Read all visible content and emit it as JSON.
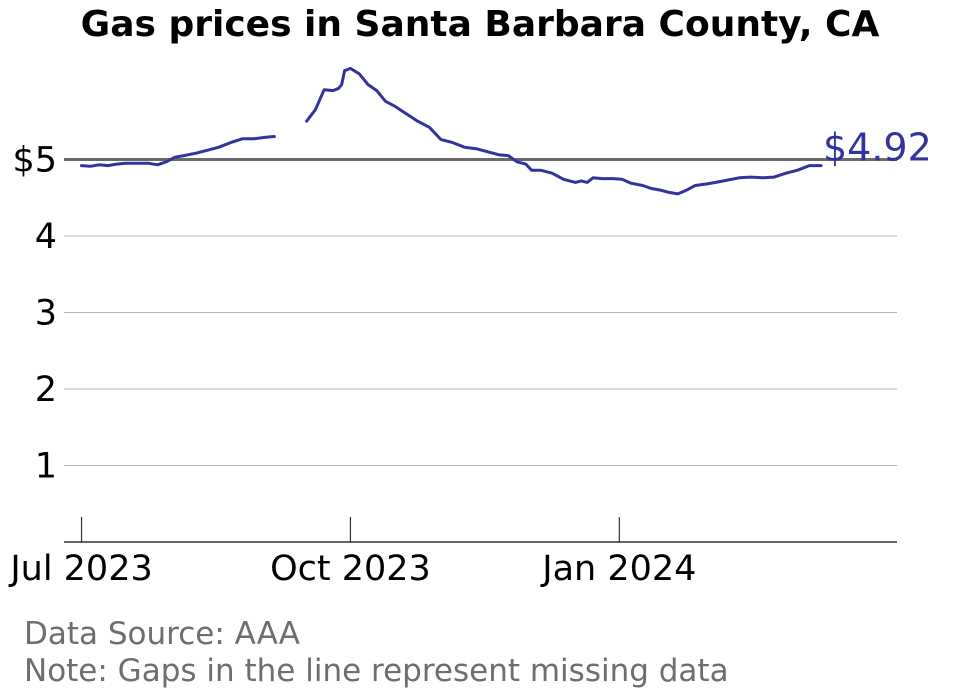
{
  "chart_data": {
    "type": "line",
    "title": "Gas prices in Santa Barbara County, CA",
    "xlabel": "",
    "ylabel": "",
    "ylim": [
      0,
      6.3
    ],
    "xlim": [
      "2023-06-25",
      "2024-04-05"
    ],
    "y_ticks": [
      {
        "value": 5,
        "label": "$5"
      },
      {
        "value": 4,
        "label": "4"
      },
      {
        "value": 3,
        "label": "3"
      },
      {
        "value": 2,
        "label": "2"
      },
      {
        "value": 1,
        "label": "1"
      }
    ],
    "x_ticks": [
      {
        "date": "2023-07-01",
        "label": "Jul 2023"
      },
      {
        "date": "2023-10-01",
        "label": "Oct 2023"
      },
      {
        "date": "2024-01-01",
        "label": "Jan 2024"
      }
    ],
    "reference_line": {
      "value": 5,
      "color": "#6b6b6b"
    },
    "grid": true,
    "last_value_label": "$4.92",
    "series": [
      {
        "color": "#33339c",
        "segments": [
          [
            [
              "2023-07-01",
              4.92
            ],
            [
              "2023-07-04",
              4.91
            ],
            [
              "2023-07-07",
              4.93
            ],
            [
              "2023-07-10",
              4.92
            ],
            [
              "2023-07-13",
              4.94
            ],
            [
              "2023-07-16",
              4.95
            ],
            [
              "2023-07-20",
              4.95
            ],
            [
              "2023-07-24",
              4.95
            ],
            [
              "2023-07-27",
              4.93
            ],
            [
              "2023-07-30",
              4.97
            ],
            [
              "2023-08-02",
              5.03
            ],
            [
              "2023-08-05",
              5.05
            ],
            [
              "2023-08-09",
              5.08
            ],
            [
              "2023-08-13",
              5.12
            ],
            [
              "2023-08-17",
              5.16
            ],
            [
              "2023-08-21",
              5.22
            ],
            [
              "2023-08-25",
              5.27
            ],
            [
              "2023-08-29",
              5.27
            ],
            [
              "2023-09-02",
              5.29
            ],
            [
              "2023-09-05",
              5.3
            ]
          ],
          [
            [
              "2023-09-16",
              5.5
            ],
            [
              "2023-09-19",
              5.65
            ],
            [
              "2023-09-22",
              5.91
            ],
            [
              "2023-09-25",
              5.9
            ],
            [
              "2023-09-27",
              5.93
            ],
            [
              "2023-09-28",
              5.98
            ],
            [
              "2023-09-29",
              6.16
            ],
            [
              "2023-10-01",
              6.19
            ],
            [
              "2023-10-04",
              6.12
            ],
            [
              "2023-10-07",
              5.98
            ],
            [
              "2023-10-10",
              5.9
            ],
            [
              "2023-10-13",
              5.76
            ],
            [
              "2023-10-16",
              5.7
            ],
            [
              "2023-10-20",
              5.6
            ],
            [
              "2023-10-24",
              5.5
            ],
            [
              "2023-10-28",
              5.42
            ],
            [
              "2023-11-01",
              5.26
            ],
            [
              "2023-11-05",
              5.22
            ],
            [
              "2023-11-09",
              5.16
            ],
            [
              "2023-11-13",
              5.14
            ],
            [
              "2023-11-17",
              5.1
            ],
            [
              "2023-11-21",
              5.06
            ],
            [
              "2023-11-24",
              5.05
            ],
            [
              "2023-11-27",
              4.97
            ],
            [
              "2023-11-30",
              4.94
            ],
            [
              "2023-12-02",
              4.86
            ],
            [
              "2023-12-05",
              4.86
            ],
            [
              "2023-12-09",
              4.82
            ],
            [
              "2023-12-13",
              4.74
            ],
            [
              "2023-12-17",
              4.7
            ],
            [
              "2023-12-19",
              4.72
            ],
            [
              "2023-12-21",
              4.7
            ],
            [
              "2023-12-23",
              4.76
            ],
            [
              "2023-12-26",
              4.75
            ],
            [
              "2023-12-30",
              4.75
            ],
            [
              "2024-01-02",
              4.74
            ],
            [
              "2024-01-05",
              4.69
            ],
            [
              "2024-01-09",
              4.66
            ],
            [
              "2024-01-12",
              4.62
            ],
            [
              "2024-01-15",
              4.6
            ],
            [
              "2024-01-18",
              4.57
            ],
            [
              "2024-01-21",
              4.55
            ],
            [
              "2024-01-24",
              4.6
            ],
            [
              "2024-01-27",
              4.66
            ],
            [
              "2024-01-31",
              4.68
            ],
            [
              "2024-02-03",
              4.7
            ],
            [
              "2024-02-07",
              4.73
            ],
            [
              "2024-02-11",
              4.76
            ],
            [
              "2024-02-15",
              4.77
            ],
            [
              "2024-02-19",
              4.76
            ],
            [
              "2024-02-23",
              4.77
            ],
            [
              "2024-02-27",
              4.82
            ],
            [
              "2024-03-02",
              4.86
            ],
            [
              "2024-03-06",
              4.92
            ],
            [
              "2024-03-10",
              4.92
            ]
          ]
        ]
      }
    ],
    "footer": {
      "source": "Data Source: AAA",
      "note": "Note: Gaps in the line represent missing data"
    }
  }
}
